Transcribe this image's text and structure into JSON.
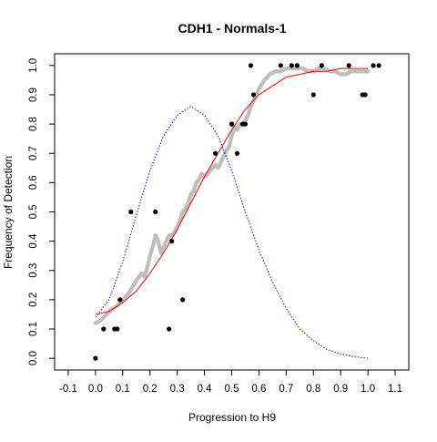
{
  "chart_data": {
    "type": "scatter",
    "title": "CDH1 - Normals-1",
    "xlabel": "Progression to H9",
    "ylabel": "Frequency of Detection",
    "xlim": [
      -0.15,
      1.15
    ],
    "ylim": [
      -0.04,
      1.04
    ],
    "xticks": [
      "-0.1",
      "0.0",
      "0.1",
      "0.2",
      "0.3",
      "0.4",
      "0.5",
      "0.6",
      "0.7",
      "0.8",
      "0.9",
      "1.0",
      "1.1"
    ],
    "yticks": [
      "0.0",
      "0.1",
      "0.2",
      "0.3",
      "0.4",
      "0.5",
      "0.6",
      "0.7",
      "0.8",
      "0.9",
      "1.0"
    ],
    "grid": false,
    "colors": {
      "observed_points": "#000000",
      "smoothed_trace": "#bebebe",
      "fitted_curve": "#ff0000",
      "density_curve": "#0000ff"
    },
    "series": [
      {
        "kind": "points",
        "x": [
          0.0,
          0.03,
          0.07,
          0.08,
          0.09,
          0.13,
          0.22,
          0.27,
          0.28,
          0.32,
          0.44,
          0.5,
          0.5,
          0.52,
          0.54,
          0.55,
          0.57,
          0.58,
          0.68,
          0.72,
          0.74,
          0.8,
          0.83,
          0.93,
          0.98,
          0.99,
          1.02,
          1.04
        ],
        "y": [
          0.0,
          0.1,
          0.1,
          0.1,
          0.2,
          0.5,
          0.5,
          0.1,
          0.4,
          0.2,
          0.7,
          0.8,
          0.8,
          0.7,
          0.8,
          0.8,
          1.0,
          0.9,
          1.0,
          1.0,
          1.0,
          0.9,
          1.0,
          1.0,
          0.9,
          0.9,
          1.0,
          1.0
        ]
      },
      {
        "kind": "trace",
        "x": [
          0.0,
          0.02,
          0.05,
          0.08,
          0.1,
          0.12,
          0.14,
          0.16,
          0.17,
          0.18,
          0.19,
          0.2,
          0.21,
          0.22,
          0.23,
          0.24,
          0.25,
          0.26,
          0.27,
          0.28,
          0.29,
          0.3,
          0.31,
          0.32,
          0.33,
          0.34,
          0.35,
          0.36,
          0.37,
          0.38,
          0.39,
          0.4,
          0.41,
          0.42,
          0.43,
          0.44,
          0.45,
          0.46,
          0.47,
          0.48,
          0.49,
          0.5,
          0.51,
          0.52,
          0.53,
          0.54,
          0.55,
          0.56,
          0.57,
          0.58,
          0.6,
          0.62,
          0.64,
          0.66,
          0.68,
          0.7,
          0.72,
          0.74,
          0.76,
          0.78,
          0.8,
          0.82,
          0.84,
          0.86,
          0.88,
          0.9,
          0.92,
          0.94,
          0.96,
          0.98,
          1.0
        ],
        "y": [
          0.12,
          0.13,
          0.16,
          0.18,
          0.2,
          0.22,
          0.25,
          0.28,
          0.29,
          0.28,
          0.31,
          0.35,
          0.38,
          0.42,
          0.4,
          0.36,
          0.38,
          0.4,
          0.42,
          0.42,
          0.43,
          0.45,
          0.47,
          0.5,
          0.51,
          0.53,
          0.56,
          0.57,
          0.6,
          0.61,
          0.63,
          0.62,
          0.63,
          0.64,
          0.65,
          0.66,
          0.65,
          0.67,
          0.69,
          0.71,
          0.72,
          0.76,
          0.79,
          0.78,
          0.8,
          0.8,
          0.81,
          0.83,
          0.86,
          0.88,
          0.92,
          0.95,
          0.97,
          0.98,
          0.98,
          0.99,
          0.99,
          0.99,
          0.99,
          0.98,
          0.98,
          0.99,
          0.99,
          0.98,
          0.98,
          0.97,
          0.97,
          0.98,
          0.98,
          0.98,
          0.98
        ]
      },
      {
        "kind": "fit",
        "x": [
          0.0,
          0.05,
          0.1,
          0.15,
          0.2,
          0.25,
          0.3,
          0.35,
          0.4,
          0.45,
          0.5,
          0.55,
          0.6,
          0.65,
          0.7,
          0.75,
          0.8,
          0.85,
          0.9,
          0.95,
          1.0
        ],
        "y": [
          0.15,
          0.16,
          0.19,
          0.23,
          0.29,
          0.36,
          0.44,
          0.53,
          0.62,
          0.7,
          0.78,
          0.85,
          0.9,
          0.93,
          0.96,
          0.97,
          0.98,
          0.98,
          0.99,
          0.99,
          0.99
        ]
      },
      {
        "kind": "density",
        "x": [
          0.0,
          0.05,
          0.1,
          0.15,
          0.2,
          0.25,
          0.3,
          0.35,
          0.4,
          0.45,
          0.5,
          0.55,
          0.6,
          0.65,
          0.7,
          0.75,
          0.8,
          0.85,
          0.9,
          0.95,
          1.0
        ],
        "y": [
          0.14,
          0.2,
          0.33,
          0.49,
          0.64,
          0.76,
          0.83,
          0.86,
          0.83,
          0.76,
          0.64,
          0.5,
          0.37,
          0.26,
          0.17,
          0.1,
          0.06,
          0.03,
          0.015,
          0.005,
          0.0
        ]
      }
    ]
  }
}
